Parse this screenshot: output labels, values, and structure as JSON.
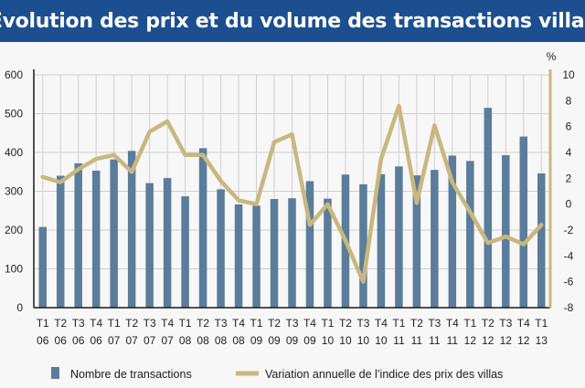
{
  "title": "Évolution des prix et du volume des transactions villas",
  "colors": {
    "header_bg": "#1c4f8f",
    "bar": "#5b7c9a",
    "line": "#c8b77f",
    "grid": "#cfcfcf",
    "background": "#f7f7f7"
  },
  "legend": {
    "bars_label": "Nombre de transactions",
    "line_label": "Variation annuelle de l’indice des prix des villas",
    "placement": "bottom"
  },
  "chart_data": {
    "type": "bar+line",
    "title": "Évolution des prix et du volume des transactions villas",
    "categories": [
      {
        "q": "T1",
        "y": "06"
      },
      {
        "q": "T2",
        "y": "06"
      },
      {
        "q": "T3",
        "y": "06"
      },
      {
        "q": "T4",
        "y": "06"
      },
      {
        "q": "T1",
        "y": "07"
      },
      {
        "q": "T2",
        "y": "07"
      },
      {
        "q": "T3",
        "y": "07"
      },
      {
        "q": "T4",
        "y": "07"
      },
      {
        "q": "T1",
        "y": "08"
      },
      {
        "q": "T2",
        "y": "08"
      },
      {
        "q": "T3",
        "y": "08"
      },
      {
        "q": "T4",
        "y": "08"
      },
      {
        "q": "T1",
        "y": "09"
      },
      {
        "q": "T2",
        "y": "09"
      },
      {
        "q": "T3",
        "y": "09"
      },
      {
        "q": "T4",
        "y": "09"
      },
      {
        "q": "T1",
        "y": "10"
      },
      {
        "q": "T2",
        "y": "10"
      },
      {
        "q": "T3",
        "y": "10"
      },
      {
        "q": "T4",
        "y": "10"
      },
      {
        "q": "T1",
        "y": "11"
      },
      {
        "q": "T2",
        "y": "11"
      },
      {
        "q": "T3",
        "y": "11"
      },
      {
        "q": "T4",
        "y": "11"
      },
      {
        "q": "T1",
        "y": "12"
      },
      {
        "q": "T2",
        "y": "12"
      },
      {
        "q": "T3",
        "y": "12"
      },
      {
        "q": "T4",
        "y": "12"
      },
      {
        "q": "T1",
        "y": "13"
      }
    ],
    "series": [
      {
        "name": "Nombre de transactions",
        "type": "bar",
        "axis": "left",
        "values": [
          208,
          340,
          372,
          353,
          382,
          404,
          321,
          334,
          287,
          411,
          305,
          266,
          263,
          280,
          282,
          326,
          281,
          343,
          318,
          344,
          364,
          341,
          355,
          392,
          378,
          515,
          393,
          441,
          346
        ]
      },
      {
        "name": "Variation annuelle de l’indice des prix des villas",
        "type": "line",
        "axis": "right",
        "values": [
          2.1,
          1.7,
          2.7,
          3.5,
          3.8,
          2.5,
          5.6,
          6.4,
          3.8,
          3.8,
          1.8,
          0.3,
          0.0,
          4.8,
          5.4,
          -1.6,
          0.0,
          -2.8,
          -6.0,
          3.5,
          7.6,
          0.1,
          6.1,
          1.7,
          -0.6,
          -3.0,
          -2.5,
          -3.1,
          -1.6
        ]
      }
    ],
    "left_axis": {
      "ylim": [
        0,
        600
      ],
      "ticks": [
        "0",
        "100",
        "200",
        "300",
        "400",
        "500",
        "600"
      ]
    },
    "right_axis": {
      "unit": "%",
      "ylim": [
        -8,
        10
      ],
      "ticks": [
        "-8",
        "-6",
        "-4",
        "-2",
        "0",
        "2",
        "4",
        "6",
        "8",
        "10"
      ]
    },
    "grid": true
  }
}
